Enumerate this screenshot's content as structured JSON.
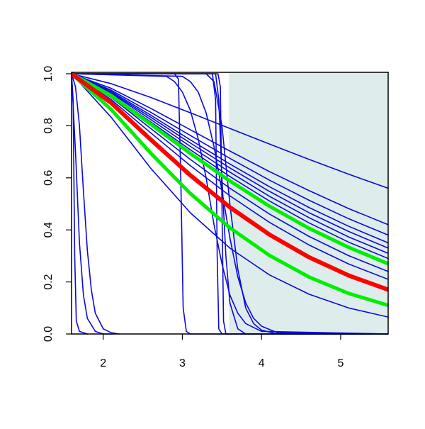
{
  "chart_data": {
    "type": "line",
    "xlim": [
      1.6,
      5.6
    ],
    "ylim": [
      0,
      1
    ],
    "xticks": [
      2,
      3,
      4,
      5
    ],
    "yticks": [
      {
        "value": 0,
        "label": "0.0"
      },
      0.2,
      0.4,
      0.6,
      0.8,
      {
        "value": 1,
        "label": "1.0"
      }
    ],
    "shaded_region": {
      "xlim": [
        3.59,
        5.6
      ],
      "color": "#deeceb"
    },
    "x": [
      1.6,
      2.1,
      2.6,
      3.1,
      3.6,
      4.1,
      4.6,
      5.1,
      5.6
    ],
    "series": [
      {
        "color": "#0a0adc",
        "width": 1.6,
        "values": [
          1,
          0.962,
          0.909,
          0.85,
          0.79,
          0.73,
          0.671,
          0.614,
          0.56
        ]
      },
      {
        "color": "#0a0adc",
        "width": 1.6,
        "values": [
          1,
          0.944,
          0.867,
          0.785,
          0.703,
          0.624,
          0.551,
          0.482,
          0.42
        ]
      },
      {
        "color": "#0a0adc",
        "width": 1.6,
        "values": [
          1,
          0.937,
          0.852,
          0.763,
          0.675,
          0.591,
          0.514,
          0.443,
          0.38
        ]
      },
      {
        "color": "#0a0adc",
        "width": 1.6,
        "values": [
          1,
          0.932,
          0.841,
          0.746,
          0.653,
          0.566,
          0.486,
          0.414,
          0.35
        ]
      },
      {
        "color": "#0a0adc",
        "width": 1.6,
        "values": [
          1,
          0.928,
          0.833,
          0.734,
          0.638,
          0.548,
          0.466,
          0.394,
          0.33
        ]
      },
      {
        "color": "#0a0adc",
        "width": 1.6,
        "values": [
          1,
          0.925,
          0.824,
          0.721,
          0.622,
          0.529,
          0.447,
          0.373,
          0.31
        ]
      },
      {
        "color": "#0a0adc",
        "width": 1.6,
        "values": [
          1,
          0.92,
          0.815,
          0.708,
          0.605,
          0.511,
          0.427,
          0.353,
          0.29
        ]
      },
      {
        "color": "#0a0adc",
        "width": 1.6,
        "values": [
          1,
          0.909,
          0.79,
          0.671,
          0.56,
          0.461,
          0.375,
          0.301,
          0.24
        ]
      },
      {
        "color": "#0a0adc",
        "width": 1.6,
        "values": [
          1,
          0.901,
          0.773,
          0.647,
          0.531,
          0.429,
          0.342,
          0.269,
          0.21
        ]
      },
      {
        "color": "#0a0adc",
        "width": 1.6,
        "values": [
          1,
          0.833,
          0.637,
          0.466,
          0.33,
          0.227,
          0.153,
          0.1,
          0.065
        ]
      },
      {
        "color": "#0a0adc",
        "width": 1.6,
        "x": [
          1.6,
          1.62,
          1.64,
          1.66,
          1.7,
          1.8
        ],
        "values": [
          1,
          0.9,
          0.3,
          0.05,
          0.01,
          0
        ]
      },
      {
        "color": "#0a0adc",
        "width": 1.6,
        "x": [
          1.6,
          1.65,
          1.7,
          1.75,
          1.8,
          1.9,
          2.0,
          2.1
        ],
        "values": [
          1,
          0.7,
          0.35,
          0.15,
          0.06,
          0.01,
          0,
          0
        ]
      },
      {
        "color": "#0a0adc",
        "width": 1.6,
        "x": [
          1.6,
          1.65,
          1.7,
          1.75,
          1.8,
          1.85,
          1.9,
          2.0,
          2.1,
          2.2
        ],
        "values": [
          1,
          0.95,
          0.8,
          0.55,
          0.32,
          0.17,
          0.08,
          0.02,
          0.005,
          0
        ]
      },
      {
        "color": "#0a0adc",
        "width": 1.6,
        "x": [
          1.6,
          2.9,
          2.95,
          2.98,
          3.01,
          3.05,
          3.1,
          5.6
        ],
        "values": [
          1,
          1,
          0.98,
          0.6,
          0.1,
          0.01,
          0,
          0
        ]
      },
      {
        "color": "#0a0adc",
        "width": 1.6,
        "x": [
          1.6,
          3.38,
          3.42,
          3.44,
          3.46,
          3.5,
          5.6
        ],
        "values": [
          1,
          1,
          0.9,
          0.3,
          0.02,
          0,
          0
        ]
      },
      {
        "color": "#0a0adc",
        "width": 1.6,
        "x": [
          1.6,
          3.45,
          3.48,
          3.5,
          3.52,
          3.55,
          5.6
        ],
        "values": [
          1,
          1,
          0.95,
          0.5,
          0.05,
          0,
          0
        ]
      },
      {
        "color": "#0a0adc",
        "width": 1.6,
        "x": [
          1.6,
          2.8,
          2.9,
          3.0,
          3.1,
          3.2,
          3.3,
          3.4,
          3.5,
          3.6,
          3.7,
          3.8,
          4.0,
          5.6
        ],
        "values": [
          1,
          0.99,
          0.97,
          0.93,
          0.86,
          0.75,
          0.6,
          0.42,
          0.27,
          0.15,
          0.08,
          0.04,
          0.01,
          0
        ]
      },
      {
        "color": "#0a0adc",
        "width": 1.6,
        "x": [
          1.6,
          3.0,
          3.1,
          3.2,
          3.3,
          3.4,
          3.5,
          3.6,
          3.7,
          3.8,
          3.9,
          4.0,
          4.2,
          5.6
        ],
        "values": [
          1,
          0.99,
          0.97,
          0.93,
          0.85,
          0.72,
          0.55,
          0.37,
          0.22,
          0.12,
          0.06,
          0.03,
          0.005,
          0
        ]
      },
      {
        "color": "#0a0adc",
        "width": 1.6,
        "x": [
          1.6,
          3.3,
          3.4,
          3.5,
          3.6,
          3.7,
          3.8,
          3.9,
          4.0,
          4.2,
          5.6
        ],
        "values": [
          1,
          1,
          0.97,
          0.8,
          0.5,
          0.25,
          0.1,
          0.04,
          0.015,
          0,
          0
        ]
      },
      {
        "color": "#0a0adc",
        "width": 1.6,
        "x": [
          1.6,
          3.42,
          3.46,
          3.5,
          3.55,
          3.6,
          3.7,
          3.8,
          5.6
        ],
        "values": [
          1,
          1,
          0.9,
          0.6,
          0.3,
          0.12,
          0.02,
          0,
          0
        ]
      },
      {
        "color": "#00ee00",
        "width": 5,
        "values": [
          1,
          0.916,
          0.806,
          0.694,
          0.588,
          0.491,
          0.406,
          0.333,
          0.27
        ]
      },
      {
        "color": "#00ee00",
        "width": 5,
        "values": [
          1,
          0.863,
          0.695,
          0.54,
          0.408,
          0.302,
          0.219,
          0.156,
          0.11
        ]
      },
      {
        "color": "#ff0000",
        "width": 6,
        "values": [
          1,
          0.888,
          0.747,
          0.61,
          0.487,
          0.382,
          0.295,
          0.225,
          0.17
        ]
      }
    ]
  }
}
